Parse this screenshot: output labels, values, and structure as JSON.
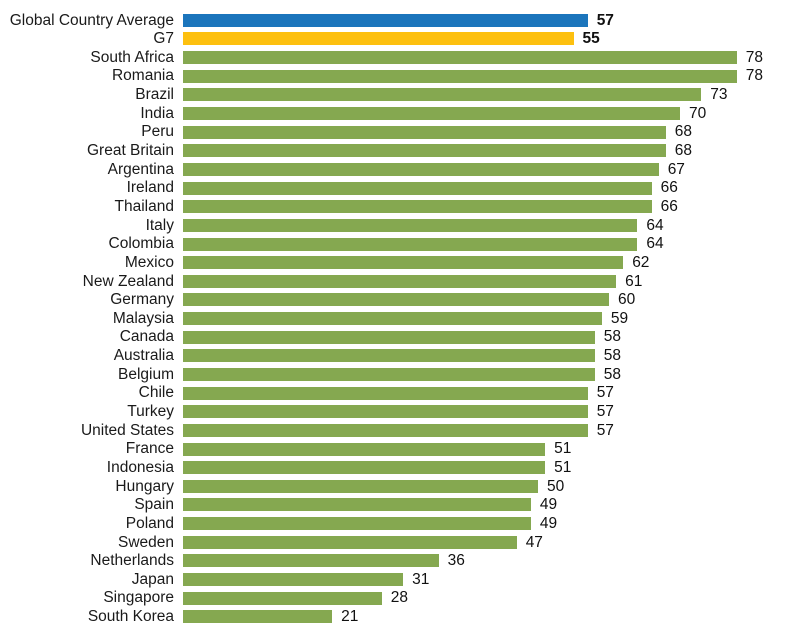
{
  "chart_data": {
    "type": "bar",
    "orientation": "horizontal",
    "title": "",
    "xlabel": "",
    "ylabel": "",
    "xlim": [
      0,
      87
    ],
    "grid": false,
    "legend": false,
    "value_labels_position": "end-of-bar",
    "categories": [
      "Global Country Average",
      "G7",
      "South Africa",
      "Romania",
      "Brazil",
      "India",
      "Peru",
      "Great Britain",
      "Argentina",
      "Ireland",
      "Thailand",
      "Italy",
      "Colombia",
      "Mexico",
      "New Zealand",
      "Germany",
      "Malaysia",
      "Canada",
      "Australia",
      "Belgium",
      "Chile",
      "Turkey",
      "United States",
      "France",
      "Indonesia",
      "Hungary",
      "Spain",
      "Poland",
      "Sweden",
      "Netherlands",
      "Japan",
      "Singapore",
      "South Korea"
    ],
    "values": [
      57,
      55,
      78,
      78,
      73,
      70,
      68,
      68,
      67,
      66,
      66,
      64,
      64,
      62,
      61,
      60,
      59,
      58,
      58,
      58,
      57,
      57,
      57,
      51,
      51,
      50,
      49,
      49,
      47,
      36,
      31,
      28,
      21
    ],
    "colors": {
      "global_average_bar": "#1B75BC",
      "g7_bar": "#FDC00F",
      "country_bar": "#85A850"
    },
    "bold_value_rows": [
      "Global Country Average",
      "G7"
    ]
  }
}
